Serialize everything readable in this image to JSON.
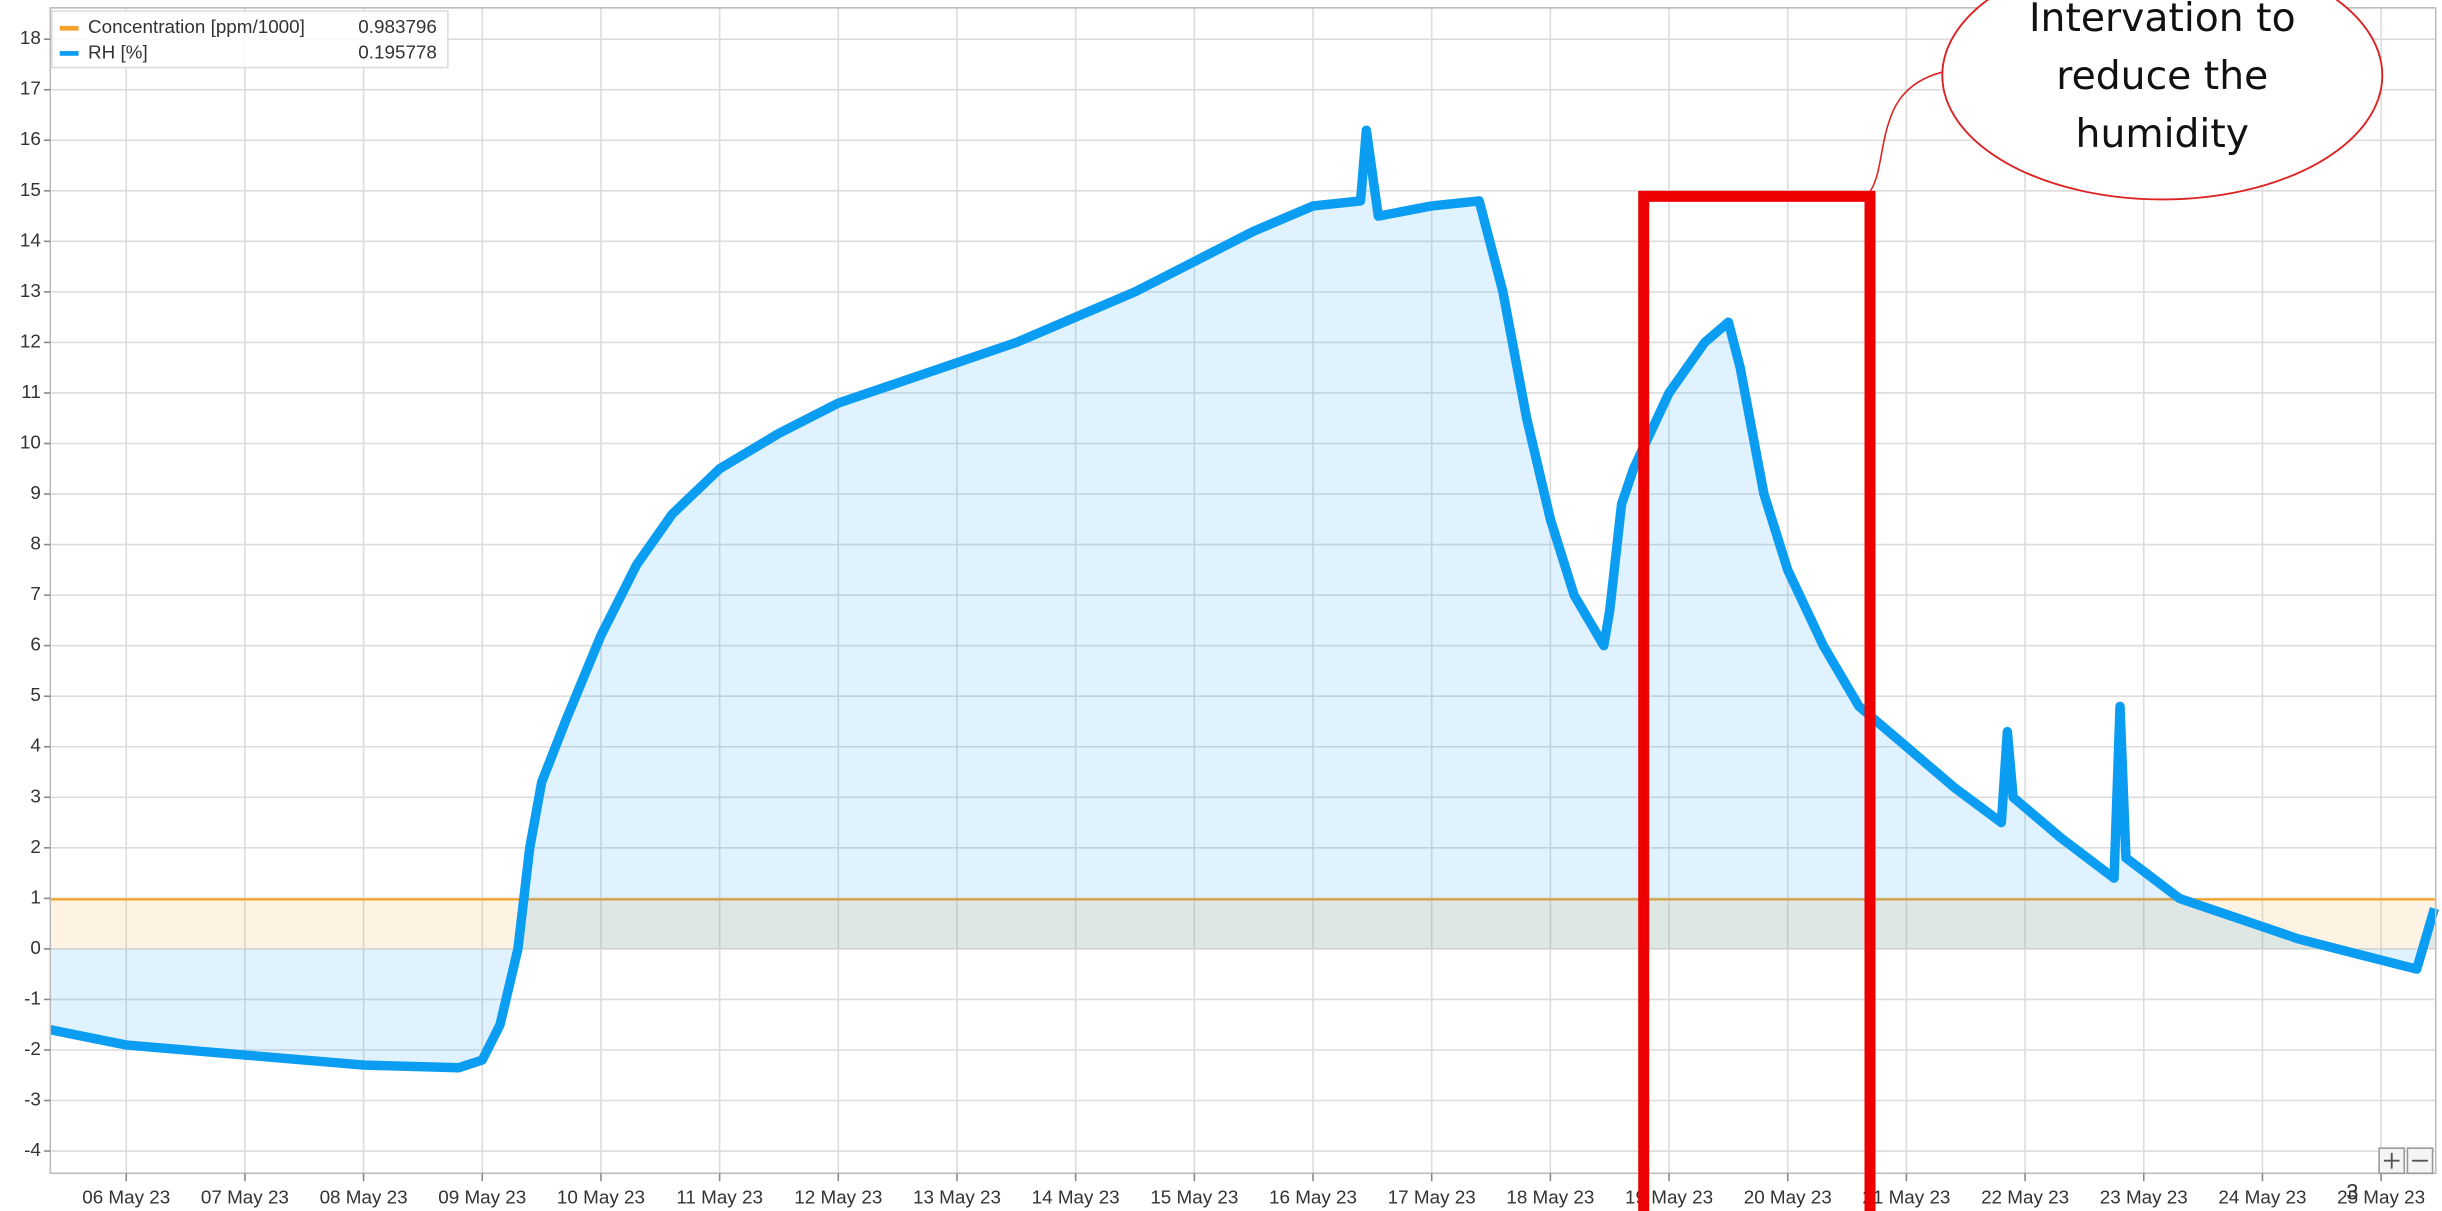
{
  "chart_data": {
    "type": "line",
    "xlim": [
      5.36,
      25.46
    ],
    "ylim": [
      -4.44,
      18.62
    ],
    "xticks": [
      {
        "value": 6,
        "label": "06 May 23"
      },
      {
        "value": 7,
        "label": "07 May 23"
      },
      {
        "value": 8,
        "label": "08 May 23"
      },
      {
        "value": 9,
        "label": "09 May 23"
      },
      {
        "value": 10,
        "label": "10 May 23"
      },
      {
        "value": 11,
        "label": "11 May 23"
      },
      {
        "value": 12,
        "label": "12 May 23"
      },
      {
        "value": 13,
        "label": "13 May 23"
      },
      {
        "value": 14,
        "label": "14 May 23"
      },
      {
        "value": 15,
        "label": "15 May 23"
      },
      {
        "value": 16,
        "label": "16 May 23"
      },
      {
        "value": 17,
        "label": "17 May 23"
      },
      {
        "value": 18,
        "label": "18 May 23"
      },
      {
        "value": 19,
        "label": "19 May 23"
      },
      {
        "value": 20,
        "label": "20 May 23"
      },
      {
        "value": 21,
        "label": "21 May 23"
      },
      {
        "value": 22,
        "label": "22 May 23"
      },
      {
        "value": 23,
        "label": "23 May 23"
      },
      {
        "value": 24,
        "label": "24 May 23"
      },
      {
        "value": 25,
        "label": "25 May 23"
      }
    ],
    "yticks": [
      -4,
      -3,
      -2,
      -1,
      0,
      1,
      2,
      3,
      4,
      5,
      6,
      7,
      8,
      9,
      10,
      11,
      12,
      13,
      14,
      15,
      16,
      17,
      18
    ],
    "grid": true,
    "legend": "top-left",
    "series": [
      {
        "name": "Concentration [ppm/1000]",
        "color": "#f5a12a",
        "legend_value": "0.983796",
        "x": [
          5.36,
          25.46
        ],
        "values": [
          0.98,
          0.98
        ]
      },
      {
        "name": "RH [%]",
        "color": "#0b9df2",
        "legend_value": "0.195778",
        "x": [
          5.36,
          6,
          7,
          8,
          8.8,
          9.0,
          9.15,
          9.3,
          9.4,
          9.5,
          9.7,
          10,
          10.3,
          10.6,
          11,
          11.5,
          12,
          12.5,
          13,
          13.5,
          14,
          14.5,
          15,
          15.5,
          16,
          16.4,
          16.45,
          16.55,
          17,
          17.4,
          17.6,
          17.8,
          18.0,
          18.2,
          18.45,
          18.5,
          18.6,
          18.7,
          19,
          19.3,
          19.5,
          19.6,
          19.8,
          20,
          20.3,
          20.6,
          21,
          21.4,
          21.8,
          21.85,
          21.9,
          22.3,
          22.75,
          22.8,
          22.85,
          23.3,
          23.8,
          24.3,
          24.8,
          25.3,
          25.45
        ],
        "values": [
          -1.6,
          -1.9,
          -2.1,
          -2.3,
          -2.35,
          -2.2,
          -1.5,
          0,
          2,
          3.3,
          4.5,
          6.2,
          7.6,
          8.6,
          9.5,
          10.2,
          10.8,
          11.2,
          11.6,
          12.0,
          12.5,
          13.0,
          13.6,
          14.2,
          14.7,
          14.8,
          16.2,
          14.5,
          14.7,
          14.8,
          13.0,
          10.5,
          8.5,
          7.0,
          6.0,
          6.7,
          8.8,
          9.5,
          11.0,
          12.0,
          12.4,
          11.5,
          9.0,
          7.5,
          6.0,
          4.8,
          4.0,
          3.2,
          2.5,
          4.3,
          3.0,
          2.2,
          1.4,
          4.8,
          1.8,
          1.0,
          0.6,
          0.2,
          -0.1,
          -0.4,
          0.8
        ]
      }
    ],
    "annotation": [
      "Intervation to",
      "reduce the",
      "humidity"
    ],
    "page_number": "3"
  }
}
